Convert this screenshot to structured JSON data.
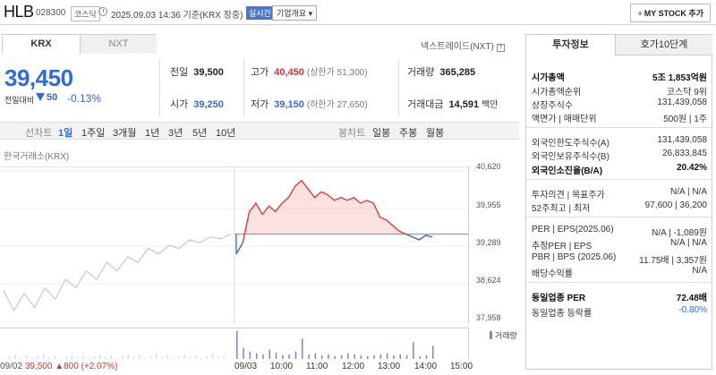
{
  "header": {
    "name": "HLB",
    "code": "028300",
    "market": "코스닥",
    "datetime": "2025.09.03 14:36 기준(KRX 장중)",
    "realtime": "실시간",
    "corp_overview": "기업개요",
    "mystock": "MY STOCK 추가",
    "mystock_plus": "+"
  },
  "tabs": {
    "krx": "KRX",
    "nxt": "NXT"
  },
  "nxt_label": "넥스트레이드(NXT)",
  "help_glyph": "?",
  "price": {
    "current": "39,450",
    "change_label": "전일대비",
    "change": "50",
    "change_pct": "-0.13%"
  },
  "quote": {
    "prev_label": "전일",
    "prev": "39,500",
    "high_label": "고가",
    "high": "40,450",
    "upper_limit": "(상한가 51,300)",
    "volume_label": "거래량",
    "volume": "365,285",
    "open_label": "시가",
    "open": "39,250",
    "low_label": "저가",
    "low": "39,150",
    "lower_limit": "(하한가 27,650)",
    "value_label": "거래대금",
    "value": "14,591",
    "value_unit": "백만"
  },
  "periods": {
    "line_chart": "선차트",
    "items": [
      "1일",
      "1주일",
      "3개월",
      "1년",
      "3년",
      "5년",
      "10년"
    ],
    "candle": "봉차트",
    "daily": "일봉",
    "weekly": "주봉",
    "monthly": "월봉"
  },
  "chart_source": "한국거래소(KRX)",
  "chart_data": {
    "type": "line",
    "ylim": [
      37958,
      40620
    ],
    "yticks": [
      "40,620",
      "39,955",
      "39,289",
      "38,624",
      "37,958"
    ],
    "xticks": [
      "09/03",
      "10:00",
      "11:00",
      "12:00",
      "13:00",
      "14:00",
      "15:00"
    ],
    "prev_close": 39500,
    "prev_day_label": "09/02",
    "prev_day_price": "39,500",
    "prev_day_change": "▲800 (+2.07%)",
    "volume_legend": "거래량",
    "prev_series": [
      38500,
      38150,
      38450,
      38200,
      38550,
      38350,
      38700,
      38550,
      38850,
      38700,
      39000,
      38850,
      39100,
      39000,
      39250,
      39150,
      39300,
      39250,
      39400,
      39350,
      39450,
      39420,
      39500
    ],
    "today_series": [
      39150,
      39350,
      39900,
      40050,
      39850,
      40000,
      39900,
      40050,
      40150,
      40350,
      40450,
      40300,
      40150,
      40250,
      40200,
      40100,
      40150,
      40100,
      40150,
      40050,
      40100,
      40050,
      39800,
      39750,
      39650,
      39550,
      39500,
      39450,
      39400,
      39480,
      39450
    ],
    "volumes": [
      30,
      12,
      8,
      6,
      5,
      10,
      7,
      4,
      5,
      8,
      22,
      5,
      6,
      4,
      5,
      3,
      4,
      6,
      5,
      4,
      3,
      4,
      5,
      6,
      4,
      5,
      4,
      18,
      3,
      4,
      14
    ]
  },
  "right": {
    "tab_info": "투자정보",
    "tab_ask": "호가10단계",
    "rows": [
      {
        "k": "시가총액",
        "v": "5조 1,853억원"
      },
      {
        "k": "시가총액순위",
        "v": "코스닥 9위"
      },
      {
        "k": "상장주식수",
        "v": "131,439,058"
      },
      {
        "k": "액면가 | 매매단위",
        "v": "500원 | 1주"
      },
      {
        "k": "외국인한도주식수(A)",
        "v": "131,439,058"
      },
      {
        "k": "외국인보유주식수(B)",
        "v": "26,833,845"
      },
      {
        "k": "외국인소진율(B/A)",
        "v": "20.42%"
      },
      {
        "k": "투자의견 | 목표주가",
        "v": "N/A | N/A"
      },
      {
        "k": "52주최고 | 최저",
        "v": "97,600 | 36,200"
      },
      {
        "k": "PER | EPS(2025.06)",
        "v": "N/A | -1,089원"
      },
      {
        "k": "추정PER | EPS",
        "v": "N/A | N/A"
      },
      {
        "k": "PBR | BPS (2025.06)",
        "v": "11.75배 | 3,357원"
      },
      {
        "k": "배당수익률",
        "v": "N/A"
      },
      {
        "k": "동일업종 PER",
        "v": "72.48배"
      },
      {
        "k": "동일업종 등락률",
        "v": "-0.80%"
      }
    ]
  }
}
